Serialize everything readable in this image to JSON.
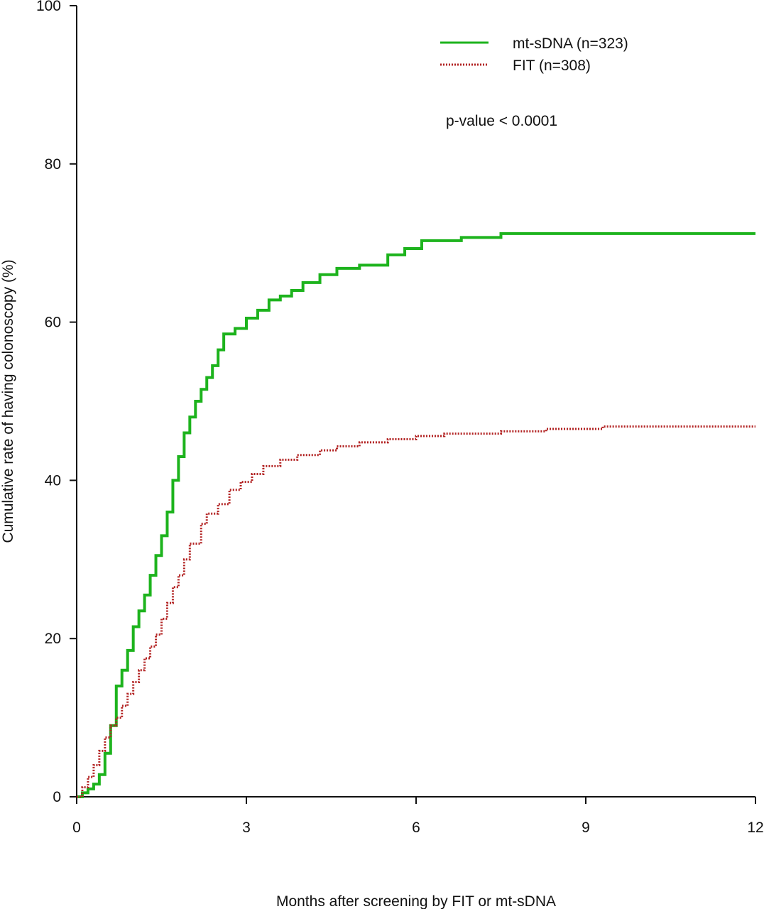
{
  "chart_data": {
    "type": "line",
    "title": "",
    "xlabel": "Months after screening by FIT or mt-sDNA",
    "ylabel": "Cumulative rate of having colonoscopy (%)",
    "xlim": [
      0,
      12
    ],
    "ylim": [
      0,
      100
    ],
    "x_ticks": [
      0,
      3,
      6,
      9,
      12
    ],
    "x_tick_labels": [
      "0",
      "3",
      "6",
      "9",
      "12"
    ],
    "y_ticks": [
      0,
      20,
      40,
      60,
      80,
      100
    ],
    "y_tick_labels": [
      "0",
      "20",
      "40",
      "60",
      "80",
      "100"
    ],
    "grid": false,
    "legend_position": "top-right",
    "annotation": "p-value < 0.0001",
    "series": [
      {
        "name": "mt-sDNA (n=323)",
        "color": "#1db31d",
        "line_style": "solid",
        "step": true,
        "points": [
          [
            0,
            0
          ],
          [
            0.1,
            0.5
          ],
          [
            0.2,
            1.0
          ],
          [
            0.3,
            1.6
          ],
          [
            0.4,
            2.8
          ],
          [
            0.5,
            5.5
          ],
          [
            0.6,
            9.0
          ],
          [
            0.7,
            14.0
          ],
          [
            0.8,
            16.0
          ],
          [
            0.9,
            18.5
          ],
          [
            1.0,
            21.5
          ],
          [
            1.1,
            23.5
          ],
          [
            1.2,
            25.5
          ],
          [
            1.3,
            28.0
          ],
          [
            1.4,
            30.5
          ],
          [
            1.5,
            33.0
          ],
          [
            1.6,
            36.0
          ],
          [
            1.7,
            40.0
          ],
          [
            1.8,
            43.0
          ],
          [
            1.9,
            46.0
          ],
          [
            2.0,
            48.0
          ],
          [
            2.1,
            50.0
          ],
          [
            2.2,
            51.5
          ],
          [
            2.3,
            53.0
          ],
          [
            2.4,
            54.5
          ],
          [
            2.5,
            56.5
          ],
          [
            2.6,
            58.5
          ],
          [
            2.8,
            59.2
          ],
          [
            3.0,
            60.5
          ],
          [
            3.2,
            61.5
          ],
          [
            3.4,
            62.8
          ],
          [
            3.6,
            63.3
          ],
          [
            3.8,
            64.0
          ],
          [
            4.0,
            65.0
          ],
          [
            4.3,
            66.0
          ],
          [
            4.6,
            66.8
          ],
          [
            5.0,
            67.2
          ],
          [
            5.5,
            68.5
          ],
          [
            5.8,
            69.3
          ],
          [
            6.1,
            70.3
          ],
          [
            6.8,
            70.7
          ],
          [
            7.5,
            71.2
          ],
          [
            12.0,
            71.2
          ]
        ]
      },
      {
        "name": "FIT (n=308)",
        "color": "#b22222",
        "line_style": "dotted",
        "step": true,
        "points": [
          [
            0,
            0
          ],
          [
            0.1,
            1.2
          ],
          [
            0.2,
            2.5
          ],
          [
            0.3,
            4.0
          ],
          [
            0.4,
            5.8
          ],
          [
            0.5,
            7.5
          ],
          [
            0.6,
            9.0
          ],
          [
            0.7,
            10.0
          ],
          [
            0.8,
            11.5
          ],
          [
            0.9,
            13.0
          ],
          [
            1.0,
            14.5
          ],
          [
            1.1,
            16.0
          ],
          [
            1.2,
            17.5
          ],
          [
            1.3,
            19.0
          ],
          [
            1.4,
            20.5
          ],
          [
            1.5,
            22.5
          ],
          [
            1.6,
            24.5
          ],
          [
            1.7,
            26.5
          ],
          [
            1.8,
            28.0
          ],
          [
            1.9,
            30.0
          ],
          [
            2.0,
            32.0
          ],
          [
            2.2,
            34.5
          ],
          [
            2.3,
            35.8
          ],
          [
            2.5,
            37.0
          ],
          [
            2.7,
            38.8
          ],
          [
            2.9,
            39.8
          ],
          [
            3.1,
            40.8
          ],
          [
            3.3,
            41.8
          ],
          [
            3.6,
            42.6
          ],
          [
            3.9,
            43.2
          ],
          [
            4.3,
            43.8
          ],
          [
            4.6,
            44.3
          ],
          [
            5.0,
            44.8
          ],
          [
            5.5,
            45.2
          ],
          [
            6.0,
            45.6
          ],
          [
            6.5,
            45.9
          ],
          [
            7.5,
            46.2
          ],
          [
            8.3,
            46.5
          ],
          [
            9.3,
            46.8
          ],
          [
            12.0,
            46.8
          ]
        ]
      }
    ]
  }
}
